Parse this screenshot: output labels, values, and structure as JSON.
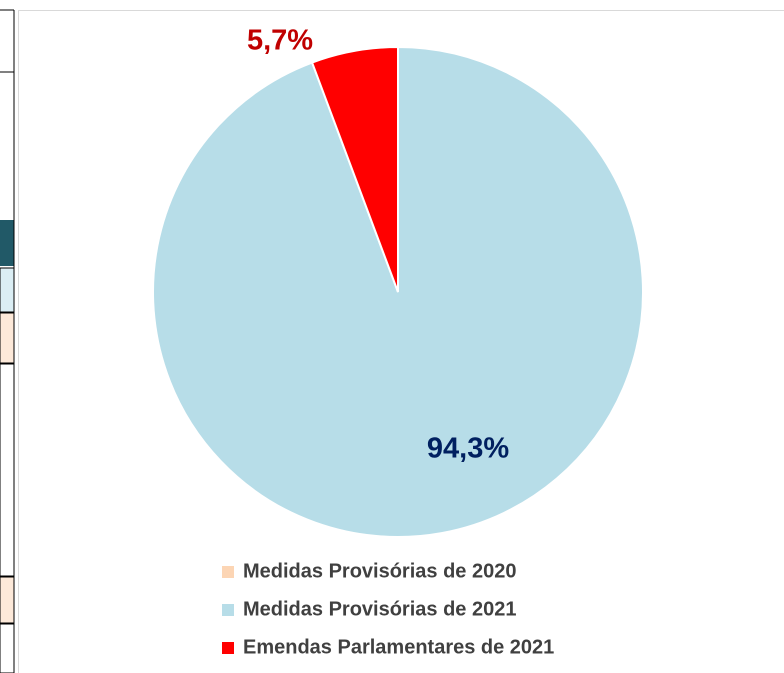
{
  "chart_data": {
    "type": "pie",
    "categories": [
      "Medidas Provisórias de 2020",
      "Medidas Provisórias de 2021",
      "Emendas Parlamentares de 2021"
    ],
    "values": [
      0,
      94.3,
      5.7
    ],
    "value_labels": [
      null,
      "94,3%",
      "5,7%"
    ],
    "colors": [
      "#fcd5b4",
      "#b7dde8",
      "#ff0000"
    ],
    "label_colors": [
      null,
      "#002060",
      "#c00000"
    ],
    "legend": "bottom"
  }
}
